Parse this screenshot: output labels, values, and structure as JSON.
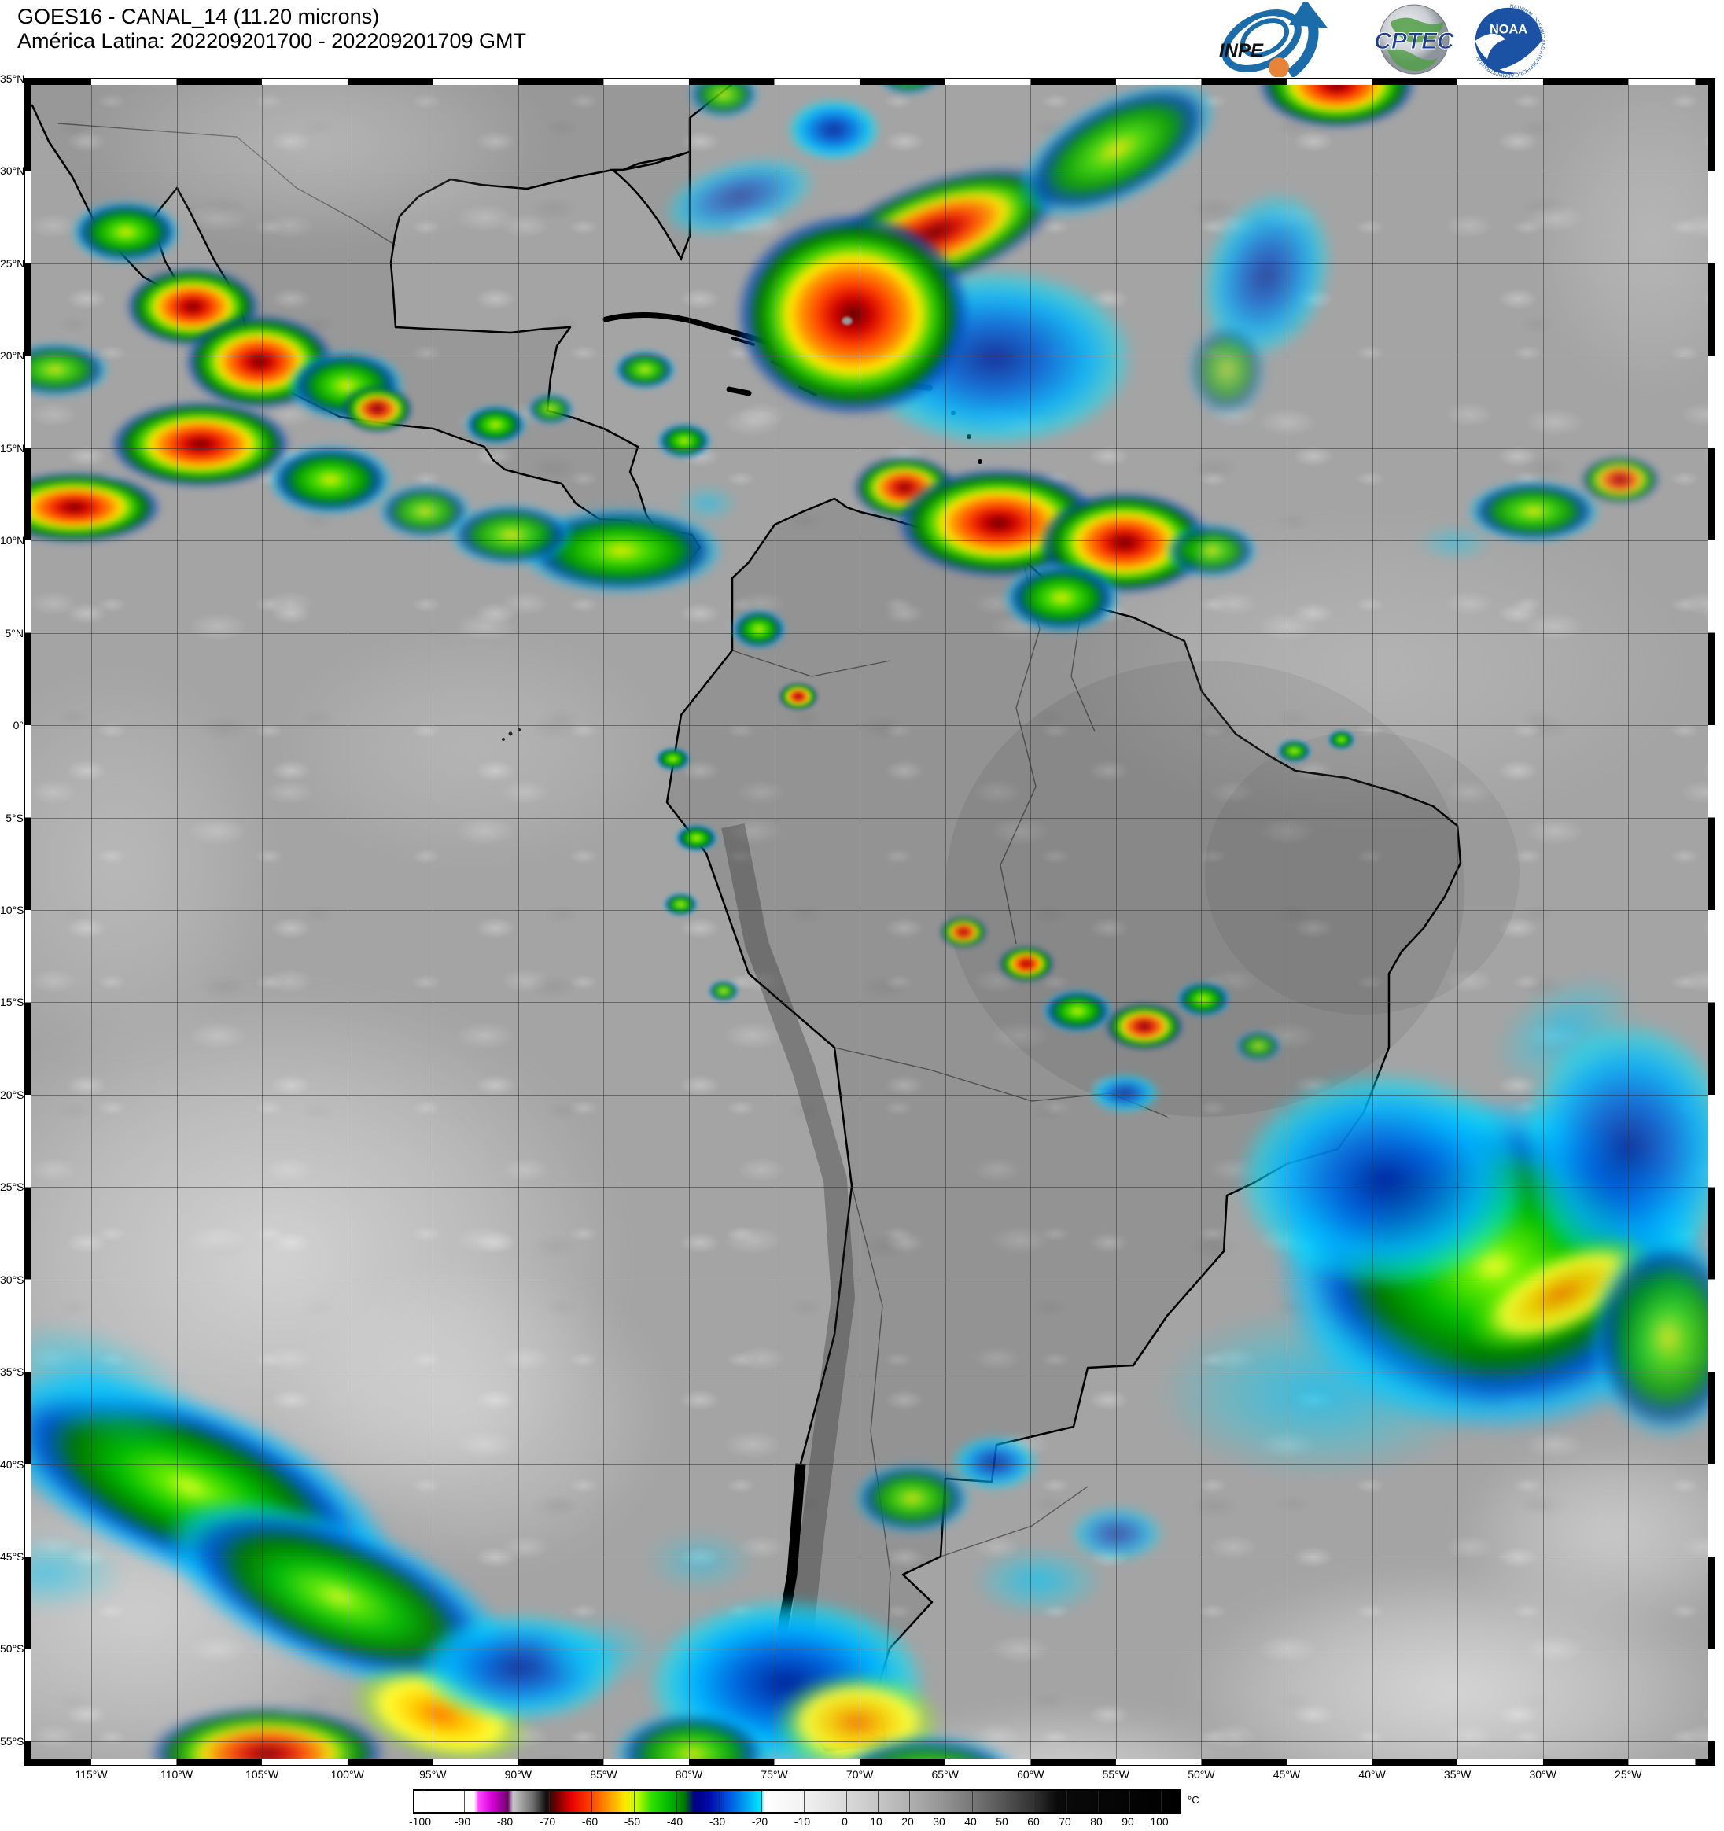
{
  "header": {
    "title_line1": "GOES16 - CANAL_14 (11.20 microns)",
    "title_line2": "América Latina: 202209201700 - 202209201709 GMT"
  },
  "logos": {
    "inpe_label": "INPE",
    "cptec_label": "CPTEC",
    "noaa_label": "NOAA",
    "noaa_ring_text": "NATIONAL OCEANIC AND ATMOSPHERIC ADMINISTRATION · U.S. DEPARTMENT OF COMMERCE"
  },
  "map": {
    "lat_labels": [
      "35°N",
      "30°N",
      "25°N",
      "20°N",
      "15°N",
      "10°N",
      "5°N",
      "0°",
      "5°S",
      "10°S",
      "15°S",
      "20°S",
      "25°S",
      "30°S",
      "35°S",
      "40°S",
      "45°S",
      "50°S",
      "55°S"
    ],
    "lon_labels": [
      "115°W",
      "110°W",
      "105°W",
      "100°W",
      "95°W",
      "90°W",
      "85°W",
      "80°W",
      "75°W",
      "70°W",
      "65°W",
      "60°W",
      "55°W",
      "50°W",
      "45°W",
      "40°W",
      "35°W",
      "30°W",
      "25°W"
    ]
  },
  "colorbar": {
    "unit": "°C",
    "ticks": [
      -100,
      -90,
      -80,
      -70,
      -60,
      -50,
      -40,
      -30,
      -20,
      -10,
      0,
      10,
      20,
      30,
      40,
      50,
      60,
      70,
      80,
      90,
      100
    ],
    "stops": [
      [
        0,
        "#ffffff"
      ],
      [
        7.8,
        "#ffffff"
      ],
      [
        8.4,
        "#ff44ff"
      ],
      [
        10.2,
        "#d400d4"
      ],
      [
        12.2,
        "#70006e"
      ],
      [
        12.9,
        "#c8c8c8"
      ],
      [
        15.5,
        "#6e6e6e"
      ],
      [
        17.2,
        "#101010"
      ],
      [
        18.4,
        "#660000"
      ],
      [
        20.5,
        "#e80000"
      ],
      [
        23,
        "#ff4000"
      ],
      [
        25.5,
        "#ff9d00"
      ],
      [
        27.5,
        "#ffe700"
      ],
      [
        29,
        "#c8ff00"
      ],
      [
        31,
        "#30e000"
      ],
      [
        33.5,
        "#00b400"
      ],
      [
        35.3,
        "#007800"
      ],
      [
        36.6,
        "#000080"
      ],
      [
        38.5,
        "#0008a8"
      ],
      [
        41,
        "#0050e0"
      ],
      [
        43.3,
        "#00a0f0"
      ],
      [
        45.3,
        "#00e8ff"
      ],
      [
        45.8,
        "#ffffff"
      ],
      [
        50.9,
        "#f2f2f2"
      ],
      [
        56.5,
        "#d9d9d9"
      ],
      [
        60.6,
        "#c6c6c6"
      ],
      [
        64.7,
        "#b0b0b0"
      ],
      [
        68.8,
        "#969696"
      ],
      [
        72.9,
        "#787878"
      ],
      [
        77,
        "#555555"
      ],
      [
        81.2,
        "#303030"
      ],
      [
        84,
        "#0a0a0a"
      ],
      [
        100,
        "#000000"
      ]
    ]
  }
}
